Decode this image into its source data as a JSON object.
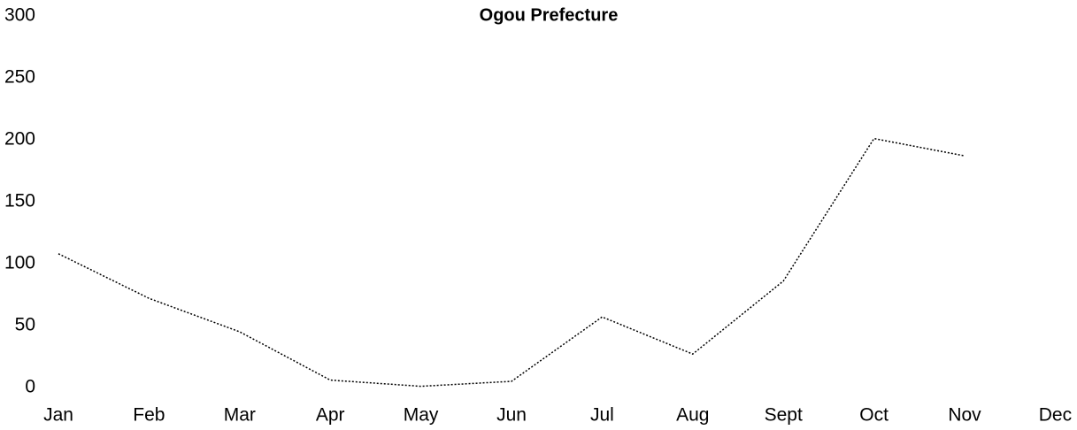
{
  "chart_data": {
    "type": "line",
    "title": "Ogou Prefecture",
    "categories": [
      "Jan",
      "Feb",
      "Mar",
      "Apr",
      "May",
      "Jun",
      "Jul",
      "Aug",
      "Sept",
      "Oct",
      "Nov",
      "Dec"
    ],
    "series": [
      {
        "name": "Ogou Prefecture",
        "color": "#000000",
        "values": [
          108,
          72,
          45,
          6,
          1,
          5,
          57,
          27,
          86,
          201,
          187,
          null
        ]
      }
    ],
    "ylim": [
      0,
      300
    ],
    "yticks": [
      0,
      50,
      100,
      150,
      200,
      250,
      300
    ],
    "grid": false
  }
}
